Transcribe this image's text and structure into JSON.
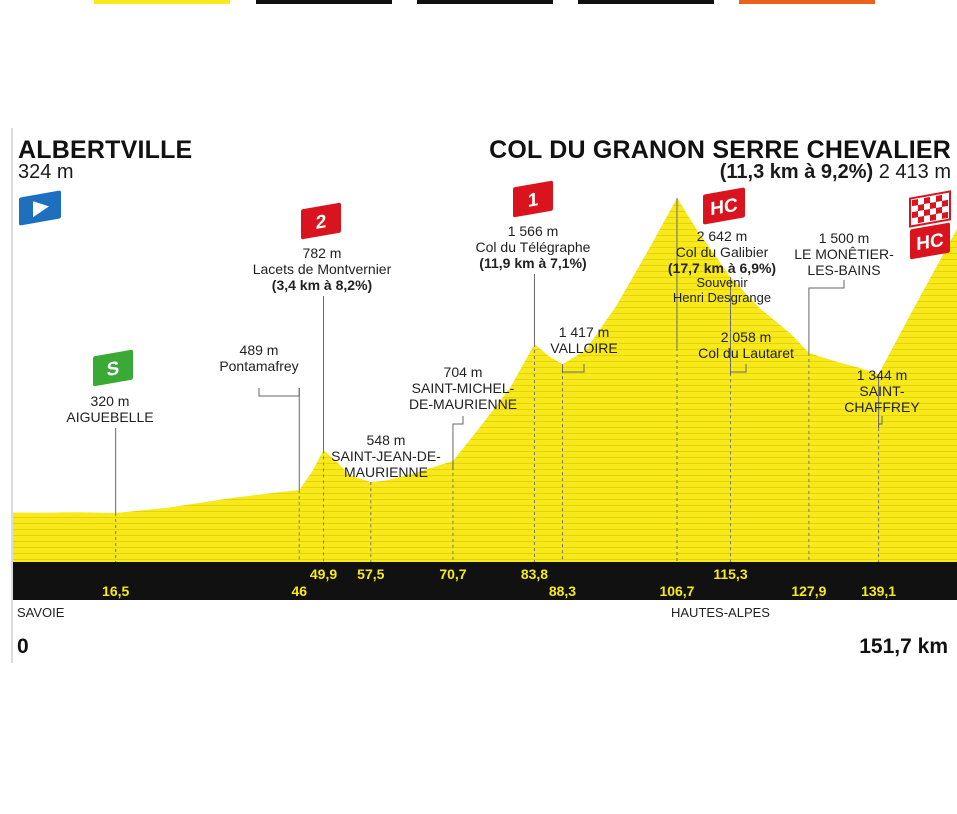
{
  "top_tabs": [
    {
      "name": "tab-yellow",
      "color": "#f7e91c"
    },
    {
      "name": "tab-black-1",
      "color": "#111111"
    },
    {
      "name": "tab-black-2",
      "color": "#111111"
    },
    {
      "name": "tab-black-3",
      "color": "#111111"
    },
    {
      "name": "tab-orange",
      "color": "#e8621c"
    }
  ],
  "header": {
    "start_name": "ALBERTVILLE",
    "start_alt": "324 m",
    "finish_name": "COL DU GRANON SERRE CHEVALIER",
    "finish_climb": "(11,3 km à 9,2%)",
    "finish_alt": "2 413 m"
  },
  "regions": {
    "left": "SAVOIE",
    "right": "HAUTES-ALPES"
  },
  "distance": {
    "start": "0",
    "end": "151,7 km"
  },
  "labels": {
    "aiguebelle": {
      "alt": "320 m",
      "name": "AIGUEBELLE"
    },
    "pontamafrey": {
      "alt": "489 m",
      "name": "Pontamafrey"
    },
    "montvernier": {
      "alt": "782 m",
      "name": "Lacets de Montvernier",
      "climb": "(3,4 km à 8,2%)"
    },
    "sjm": {
      "alt": "548 m",
      "name1": "SAINT-JEAN-DE-",
      "name2": "MAURIENNE"
    },
    "smm": {
      "alt": "704 m",
      "name1": "SAINT-MICHEL-",
      "name2": "DE-MAURIENNE"
    },
    "telegraphe": {
      "alt": "1 566 m",
      "name": "Col du Télégraphe",
      "climb": "(11,9 km à 7,1%)"
    },
    "valloire": {
      "alt": "1 417 m",
      "name": "VALLOIRE"
    },
    "galibier": {
      "alt": "2 642 m",
      "name": "Col du Galibier",
      "climb": "(17,7 km à 6,9%)",
      "sub1": "Souvenir",
      "sub2": "Henri Desgrange"
    },
    "lautaret": {
      "alt": "2 058 m",
      "name": "Col du Lautaret"
    },
    "monetier": {
      "alt": "1 500 m",
      "name1": "LE MONÊTIER-",
      "name2": "LES-BAINS"
    },
    "chaffrey": {
      "alt": "1 344 m",
      "name1": "SAINT-",
      "name2": "CHAFFREY"
    }
  },
  "badges": {
    "cat2": "2",
    "cat1": "1",
    "hc1": "HC",
    "hc2": "HC",
    "sprint": "S"
  },
  "colors": {
    "profile": "#f7e91c",
    "stripe": "#e6d400",
    "base": "#111111",
    "km": "#f7e91c",
    "cat": "#d9141e",
    "sprint": "#3aa935",
    "start": "#1f6fbf"
  },
  "chart_data": {
    "type": "area",
    "title": "",
    "xlabel": "km",
    "ylabel": "m",
    "xlim": [
      0,
      151.7
    ],
    "x": [
      0,
      5,
      10,
      16.5,
      25,
      35,
      42,
      46,
      48,
      49.9,
      52,
      54,
      57.5,
      60,
      65,
      70.7,
      75,
      80,
      83.8,
      86,
      88.3,
      92,
      97,
      102,
      106.7,
      110,
      115.3,
      120,
      125,
      127.9,
      132,
      136,
      139.1,
      145,
      151.7
    ],
    "y": [
      324,
      322,
      325,
      320,
      360,
      430,
      470,
      489,
      620,
      782,
      700,
      600,
      548,
      560,
      620,
      704,
      950,
      1250,
      1566,
      1480,
      1417,
      1520,
      1850,
      2250,
      2642,
      2400,
      2058,
      1830,
      1640,
      1500,
      1440,
      1390,
      1344,
      1850,
      2413
    ],
    "km_markers": [
      {
        "km": 16.5,
        "label": "16,5",
        "row": "low"
      },
      {
        "km": 46,
        "label": "46",
        "row": "low"
      },
      {
        "km": 49.9,
        "label": "49,9",
        "row": "high"
      },
      {
        "km": 57.5,
        "label": "57,5",
        "row": "high"
      },
      {
        "km": 70.7,
        "label": "70,7",
        "row": "high"
      },
      {
        "km": 83.8,
        "label": "83,8",
        "row": "high"
      },
      {
        "km": 88.3,
        "label": "88,3",
        "row": "low"
      },
      {
        "km": 106.7,
        "label": "106,7",
        "row": "low"
      },
      {
        "km": 115.3,
        "label": "115,3",
        "row": "high"
      },
      {
        "km": 127.9,
        "label": "127,9",
        "row": "low"
      },
      {
        "km": 139.1,
        "label": "139,1",
        "row": "low"
      }
    ]
  }
}
